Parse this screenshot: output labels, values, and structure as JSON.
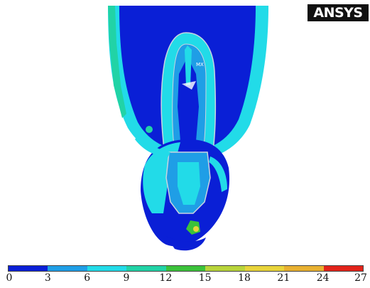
{
  "logo": {
    "text": "ANSYS"
  },
  "legend": {
    "ticks": [
      "0",
      "3",
      "6",
      "9",
      "12",
      "15",
      "18",
      "21",
      "24",
      "27"
    ],
    "colors": [
      "#0a1fd6",
      "#1f9ee6",
      "#22dbe8",
      "#21d3a6",
      "#3bc23a",
      "#b8d43a",
      "#e8d43a",
      "#e8b030",
      "#e2231a"
    ]
  },
  "annotations": {
    "mx_label": "MX"
  },
  "colors": {
    "deep_blue": "#0a1fd6",
    "mid_blue": "#1f9ee6",
    "cyan": "#22dbe8",
    "green": "#3bc23a",
    "yellow": "#e8d43a",
    "outline": "#c9d4e0"
  }
}
